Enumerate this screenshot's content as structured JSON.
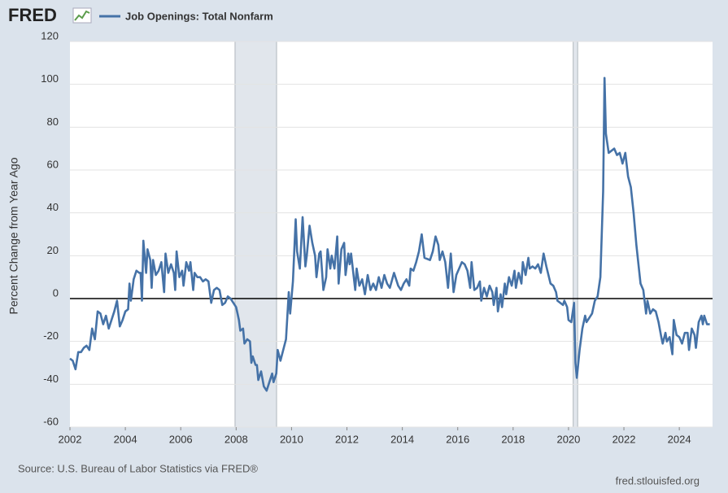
{
  "chart_data": {
    "type": "line",
    "logo": "FRED",
    "ylabel": "Percent Change from Year Ago",
    "source": "Source: U.S. Bureau of Labor Statistics via FRED®",
    "site": "fred.stlouisfed.org",
    "xlim": [
      2002,
      2025.2
    ],
    "xticks": [
      2002,
      2004,
      2006,
      2008,
      2010,
      2012,
      2014,
      2016,
      2018,
      2020,
      2022,
      2024
    ],
    "ylim": [
      -60,
      120
    ],
    "yticks": [
      -60,
      -40,
      -20,
      0,
      20,
      40,
      60,
      80,
      100,
      120
    ],
    "grid": true,
    "recessions": [
      [
        2007.96,
        2009.46
      ],
      [
        2020.17,
        2020.33
      ]
    ],
    "x": [
      2002.0,
      2002.1,
      2002.2,
      2002.3,
      2002.4,
      2002.5,
      2002.6,
      2002.7,
      2002.8,
      2002.9,
      2003.0,
      2003.1,
      2003.2,
      2003.3,
      2003.4,
      2003.5,
      2003.6,
      2003.7,
      2003.8,
      2003.9,
      2004.0,
      2004.1,
      2004.15,
      2004.2,
      2004.3,
      2004.4,
      2004.5,
      2004.55,
      2004.6,
      2004.65,
      2004.75,
      2004.8,
      2004.9,
      2004.95,
      2005.0,
      2005.1,
      2005.2,
      2005.3,
      2005.4,
      2005.45,
      2005.55,
      2005.65,
      2005.75,
      2005.8,
      2005.85,
      2005.95,
      2006.05,
      2006.1,
      2006.2,
      2006.3,
      2006.35,
      2006.45,
      2006.5,
      2006.6,
      2006.7,
      2006.8,
      2006.9,
      2007.0,
      2007.1,
      2007.2,
      2007.3,
      2007.4,
      2007.5,
      2007.6,
      2007.7,
      2007.8,
      2007.9,
      2008.0,
      2008.1,
      2008.15,
      2008.25,
      2008.3,
      2008.4,
      2008.5,
      2008.55,
      2008.6,
      2008.7,
      2008.75,
      2008.8,
      2008.9,
      2009.0,
      2009.1,
      2009.2,
      2009.3,
      2009.35,
      2009.45,
      2009.5,
      2009.6,
      2009.7,
      2009.8,
      2009.9,
      2009.95,
      2010.05,
      2010.15,
      2010.2,
      2010.3,
      2010.4,
      2010.5,
      2010.55,
      2010.65,
      2010.75,
      2010.85,
      2010.9,
      2011.0,
      2011.05,
      2011.15,
      2011.25,
      2011.3,
      2011.4,
      2011.45,
      2011.55,
      2011.65,
      2011.7,
      2011.8,
      2011.9,
      2011.95,
      2012.05,
      2012.1,
      2012.15,
      2012.3,
      2012.35,
      2012.45,
      2012.55,
      2012.65,
      2012.75,
      2012.85,
      2012.95,
      2013.05,
      2013.15,
      2013.25,
      2013.35,
      2013.45,
      2013.55,
      2013.7,
      2013.85,
      2013.95,
      2014.05,
      2014.15,
      2014.25,
      2014.3,
      2014.4,
      2014.5,
      2014.6,
      2014.7,
      2014.8,
      2015.0,
      2015.1,
      2015.2,
      2015.3,
      2015.35,
      2015.45,
      2015.55,
      2015.65,
      2015.75,
      2015.85,
      2015.95,
      2016.05,
      2016.15,
      2016.25,
      2016.35,
      2016.45,
      2016.5,
      2016.6,
      2016.7,
      2016.8,
      2016.85,
      2016.95,
      2017.05,
      2017.15,
      2017.25,
      2017.3,
      2017.4,
      2017.45,
      2017.55,
      2017.6,
      2017.7,
      2017.75,
      2017.85,
      2017.95,
      2018.05,
      2018.1,
      2018.2,
      2018.3,
      2018.35,
      2018.45,
      2018.55,
      2018.6,
      2018.7,
      2018.8,
      2018.9,
      2019.0,
      2019.1,
      2019.2,
      2019.35,
      2019.45,
      2019.55,
      2019.6,
      2019.7,
      2019.8,
      2019.85,
      2019.95,
      2020.0,
      2020.1,
      2020.2,
      2020.25,
      2020.3,
      2020.4,
      2020.5,
      2020.6,
      2020.65,
      2020.75,
      2020.85,
      2020.95,
      2021.05,
      2021.15,
      2021.25,
      2021.3,
      2021.35,
      2021.45,
      2021.55,
      2021.65,
      2021.75,
      2021.85,
      2021.95,
      2022.05,
      2022.15,
      2022.25,
      2022.35,
      2022.45,
      2022.55,
      2022.6,
      2022.7,
      2022.8,
      2022.85,
      2022.95,
      2023.05,
      2023.15,
      2023.25,
      2023.35,
      2023.4,
      2023.5,
      2023.55,
      2023.65,
      2023.75,
      2023.8,
      2023.9,
      2024.0,
      2024.1,
      2024.2,
      2024.3,
      2024.35,
      2024.45,
      2024.55,
      2024.6,
      2024.7,
      2024.8,
      2024.85,
      2024.9,
      2025.0,
      2025.1
    ],
    "series": [
      {
        "name": "Job Openings: Total Nonfarm",
        "color": "#4572a7",
        "values": [
          -28,
          -29,
          -33,
          -25,
          -25,
          -23,
          -22,
          -24,
          -14,
          -19,
          -6,
          -7,
          -12,
          -8,
          -14,
          -10,
          -6,
          -1,
          -13,
          -10,
          -6,
          -5,
          7,
          -1,
          9,
          13,
          12,
          12,
          -1,
          27,
          12,
          23,
          18,
          5,
          18,
          11,
          13,
          17,
          3,
          21,
          12,
          16,
          12,
          4,
          22,
          10,
          13,
          6,
          17,
          13,
          17,
          4,
          12,
          10,
          10,
          8,
          9,
          8,
          -2,
          4,
          5,
          4,
          -3,
          -2,
          1,
          0,
          -2,
          -4,
          -10,
          -15,
          -14,
          -21,
          -19,
          -20,
          -30,
          -27,
          -31,
          -31,
          -38,
          -34,
          -41,
          -43,
          -39,
          -35,
          -39,
          -35,
          -24,
          -29,
          -24,
          -19,
          3,
          -7,
          8,
          37,
          22,
          14,
          38,
          15,
          20,
          34,
          26,
          20,
          10,
          21,
          22,
          4,
          10,
          23,
          14,
          20,
          14,
          29,
          7,
          23,
          26,
          11,
          21,
          16,
          21,
          4,
          14,
          6,
          9,
          2,
          11,
          4,
          7,
          4,
          10,
          5,
          11,
          7,
          5,
          12,
          6,
          4,
          7,
          9,
          6,
          14,
          13,
          17,
          22,
          30,
          19,
          18,
          22,
          29,
          25,
          18,
          22,
          17,
          5,
          21,
          3,
          11,
          14,
          17,
          16,
          13,
          5,
          17,
          4,
          5,
          8,
          -1,
          5,
          1,
          6,
          3,
          -3,
          5,
          -6,
          2,
          -4,
          7,
          2,
          10,
          6,
          13,
          5,
          12,
          7,
          17,
          11,
          19,
          14,
          15,
          14,
          16,
          12,
          21,
          15,
          7,
          6,
          3,
          -1,
          -2,
          -3,
          -1,
          -4,
          -10,
          -11,
          -2,
          -30,
          -37,
          -24,
          -14,
          -8,
          -11,
          -9,
          -7,
          -1,
          1,
          10,
          50,
          103,
          77,
          68,
          69,
          70,
          67,
          68,
          63,
          68,
          57,
          52,
          40,
          25,
          13,
          7,
          4,
          -7,
          -1,
          -7,
          -5,
          -6,
          -11,
          -18,
          -21,
          -16,
          -20,
          -18,
          -26,
          -10,
          -17,
          -18,
          -21,
          -16,
          -16,
          -24,
          -14,
          -17,
          -23,
          -11,
          -8,
          -12,
          -8,
          -12,
          -12
        ]
      }
    ]
  }
}
